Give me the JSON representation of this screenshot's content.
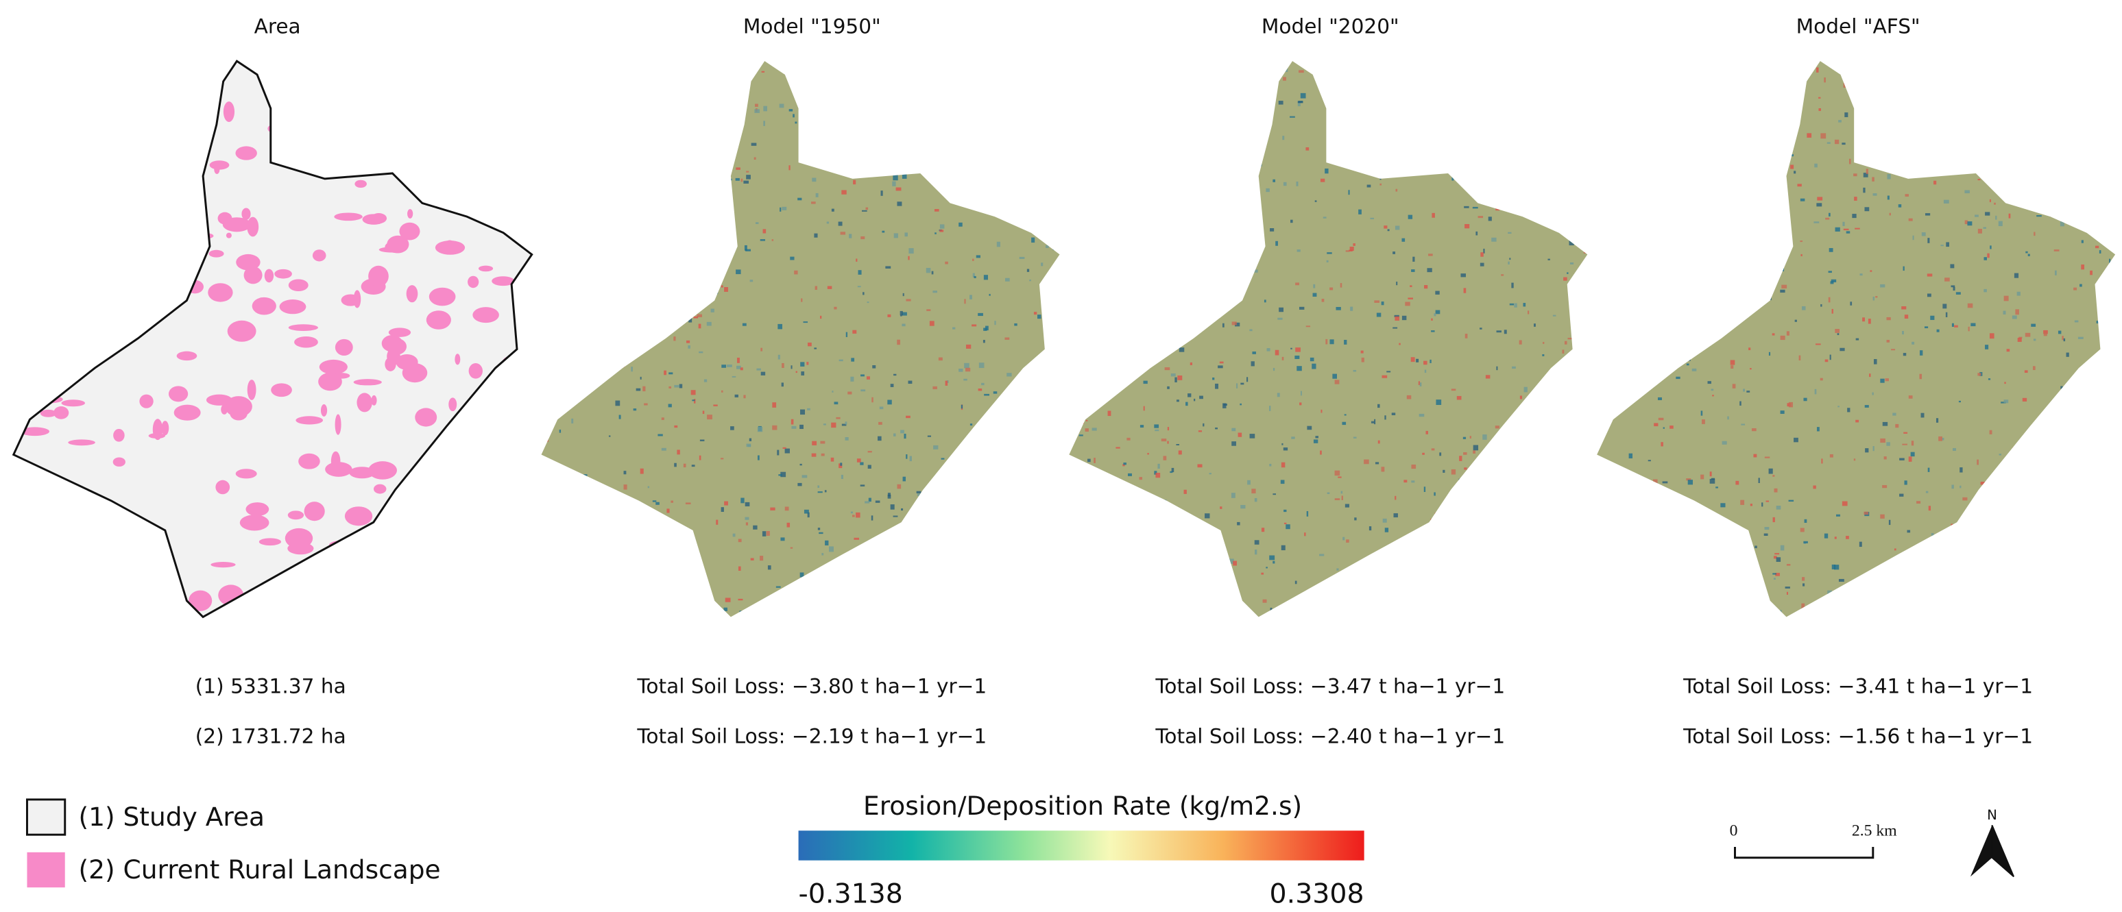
{
  "panels": [
    {
      "title": "Area",
      "lines": [
        "(1) 5331.37 ha",
        "(2) 1731.72 ha"
      ]
    },
    {
      "title": "Model \"1950\"",
      "lines": [
        "Total Soil Loss: −3.80 t ha−1 yr−1",
        "Total Soil Loss: −2.19 t ha−1 yr−1"
      ]
    },
    {
      "title": "Model \"2020\"",
      "lines": [
        "Total Soil Loss: −3.47 t ha−1 yr−1",
        "Total Soil Loss: −2.40 t ha−1 yr−1"
      ]
    },
    {
      "title": "Model \"AFS\"",
      "lines": [
        "Total Soil Loss: −3.41 t ha−1 yr−1",
        "Total Soil Loss: −1.56 t ha−1 yr−1"
      ]
    }
  ],
  "legend": [
    "(1) Study Area",
    "(2) Current Rural Landscape"
  ],
  "colorbar": {
    "title": "Erosion/Deposition Rate (kg/m2.s)",
    "min": "-0.3138",
    "max": "0.3308"
  },
  "scalebar": {
    "start": "0",
    "end": "2.5 km"
  },
  "north": "N"
}
